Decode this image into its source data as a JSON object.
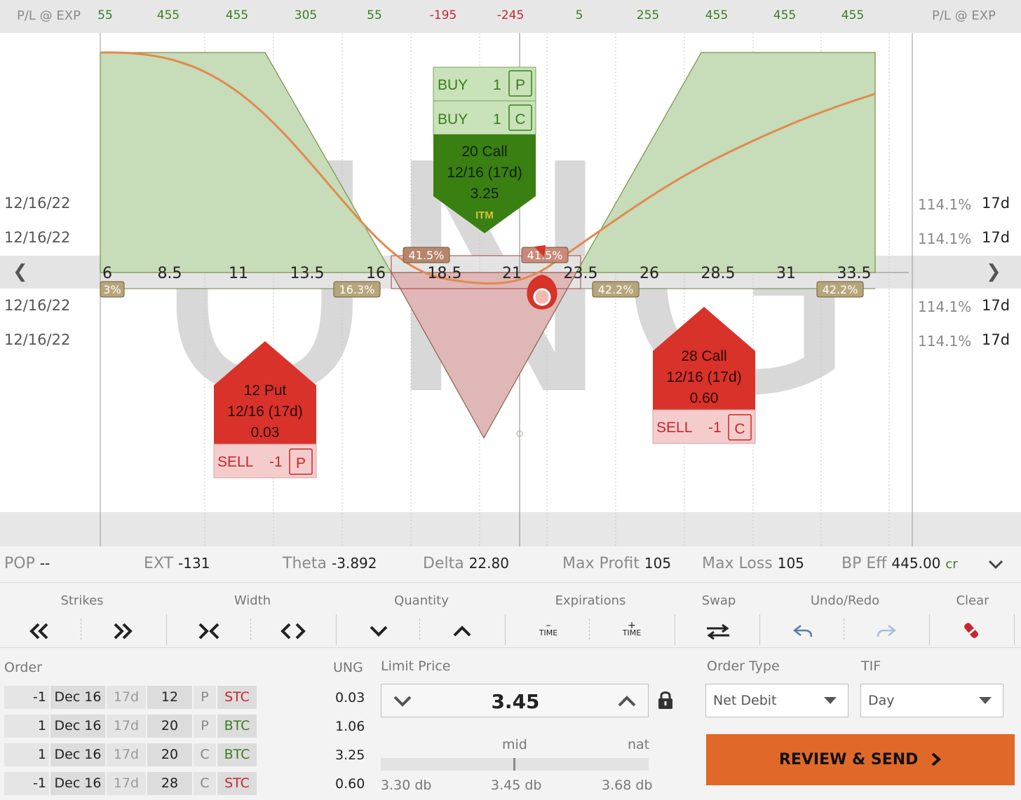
{
  "pl_bar": {
    "left_label": "P/L @ EXP",
    "right_label": "P/L @ EXP",
    "values": [
      {
        "text": "55",
        "sign": "pos"
      },
      {
        "text": "455",
        "sign": "pos"
      },
      {
        "text": "455",
        "sign": "pos"
      },
      {
        "text": "305",
        "sign": "pos"
      },
      {
        "text": "55",
        "sign": "pos"
      },
      {
        "text": "-195",
        "sign": "neg"
      },
      {
        "text": "-245",
        "sign": "neg"
      },
      {
        "text": "5",
        "sign": "pos"
      },
      {
        "text": "255",
        "sign": "pos"
      },
      {
        "text": "455",
        "sign": "pos"
      },
      {
        "text": "455",
        "sign": "pos"
      },
      {
        "text": "455",
        "sign": "pos"
      }
    ]
  },
  "chart": {
    "watermark": "UNG",
    "strikes": [
      "6",
      "8.5",
      "11",
      "13.5",
      "16",
      "18.5",
      "21",
      "23.5",
      "26",
      "28.5",
      "31",
      "33.5"
    ],
    "prob_badges": [
      "3%",
      "16.3%",
      "41.5%",
      "41.5%",
      "42.2%",
      "42.2%"
    ],
    "left_dates": [
      "12/16/22",
      "12/16/22",
      "12/16/22",
      "12/16/22"
    ],
    "right_rows": [
      {
        "pct": "114.1%",
        "days": "17d"
      },
      {
        "pct": "114.1%",
        "days": "17d"
      },
      {
        "pct": "114.1%",
        "days": "17d"
      },
      {
        "pct": "114.1%",
        "days": "17d"
      }
    ]
  },
  "legs": {
    "call20": {
      "buy1_action": "BUY",
      "buy1_qty": "1",
      "buy1_type": "P",
      "buy2_action": "BUY",
      "buy2_qty": "1",
      "buy2_type": "C",
      "line1": "20 Call",
      "line2": "12/16 (17d)",
      "line3": "3.25",
      "tag": "ITM"
    },
    "put12": {
      "line1": "12 Put",
      "line2": "12/16 (17d)",
      "line3": "0.03",
      "action": "SELL",
      "qty": "-1",
      "type": "P"
    },
    "call28": {
      "line1": "28 Call",
      "line2": "12/16 (17d)",
      "line3": "0.60",
      "action": "SELL",
      "qty": "-1",
      "type": "C"
    }
  },
  "stats": {
    "pop_label": "POP",
    "pop_value": "--",
    "ext_label": "EXT",
    "ext_value": "-131",
    "theta_label": "Theta",
    "theta_value": "-3.892",
    "delta_label": "Delta",
    "delta_value": "22.80",
    "maxprofit_label": "Max Profit",
    "maxprofit_value": "105",
    "maxloss_label": "Max Loss",
    "maxloss_value": "105",
    "bpeff_label": "BP Eff",
    "bpeff_value": "445.00",
    "bpeff_unit": "cr"
  },
  "toolbar": {
    "strikes": "Strikes",
    "width": "Width",
    "quantity": "Quantity",
    "expirations": "Expirations",
    "swap": "Swap",
    "undo_redo": "Undo/Redo",
    "clear": "Clear",
    "time_label": "TIME"
  },
  "order": {
    "label": "Order",
    "symbol": "UNG",
    "rows": [
      {
        "qty": "-1",
        "exp": "Dec 16",
        "dte": "17d",
        "strike": "12",
        "type": "P",
        "action": "STC",
        "price": "0.03"
      },
      {
        "qty": "1",
        "exp": "Dec 16",
        "dte": "17d",
        "strike": "20",
        "type": "P",
        "action": "BTC",
        "price": "1.06"
      },
      {
        "qty": "1",
        "exp": "Dec 16",
        "dte": "17d",
        "strike": "20",
        "type": "C",
        "action": "BTC",
        "price": "3.25"
      },
      {
        "qty": "-1",
        "exp": "Dec 16",
        "dte": "17d",
        "strike": "28",
        "type": "C",
        "action": "STC",
        "price": "0.60"
      }
    ]
  },
  "limit": {
    "label": "Limit Price",
    "value": "3.45",
    "mid_label": "mid",
    "nat_label": "nat",
    "low": "3.30 db",
    "mid": "3.45 db",
    "high": "3.68 db"
  },
  "order_type": {
    "label": "Order Type",
    "value": "Net Debit"
  },
  "tif": {
    "label": "TIF",
    "value": "Day"
  },
  "send_button": "REVIEW & SEND",
  "colors": {
    "profit": "#3a7d1d",
    "loss": "#c7262b",
    "accent": "#e0692a"
  }
}
